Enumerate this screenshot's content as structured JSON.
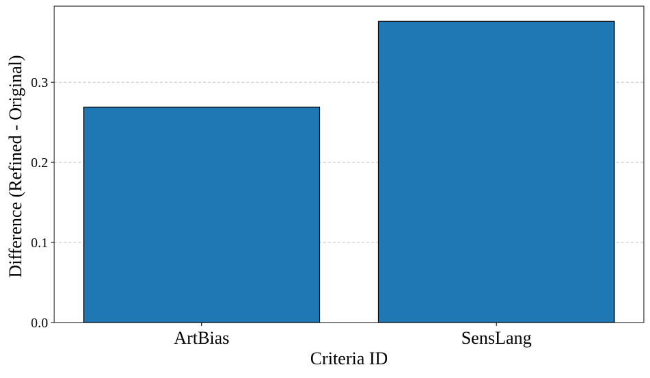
{
  "chart_data": {
    "type": "bar",
    "categories": [
      "ArtBias",
      "SensLang"
    ],
    "values": [
      0.269,
      0.376
    ],
    "title": "",
    "xlabel": "Criteria ID",
    "ylabel": "Difference (Refined - Original)",
    "ylim": [
      0,
      0.395
    ],
    "yticks": [
      0.0,
      0.1,
      0.2,
      0.3
    ],
    "ytick_labels": [
      "0.0",
      "0.1",
      "0.2",
      "0.3"
    ],
    "grid": "y-dashed",
    "legend": "none",
    "colors": {
      "bar_fill": "#1f77b4",
      "bar_edge": "#000000",
      "grid": "#c0c0c0",
      "axis": "#000000"
    }
  }
}
